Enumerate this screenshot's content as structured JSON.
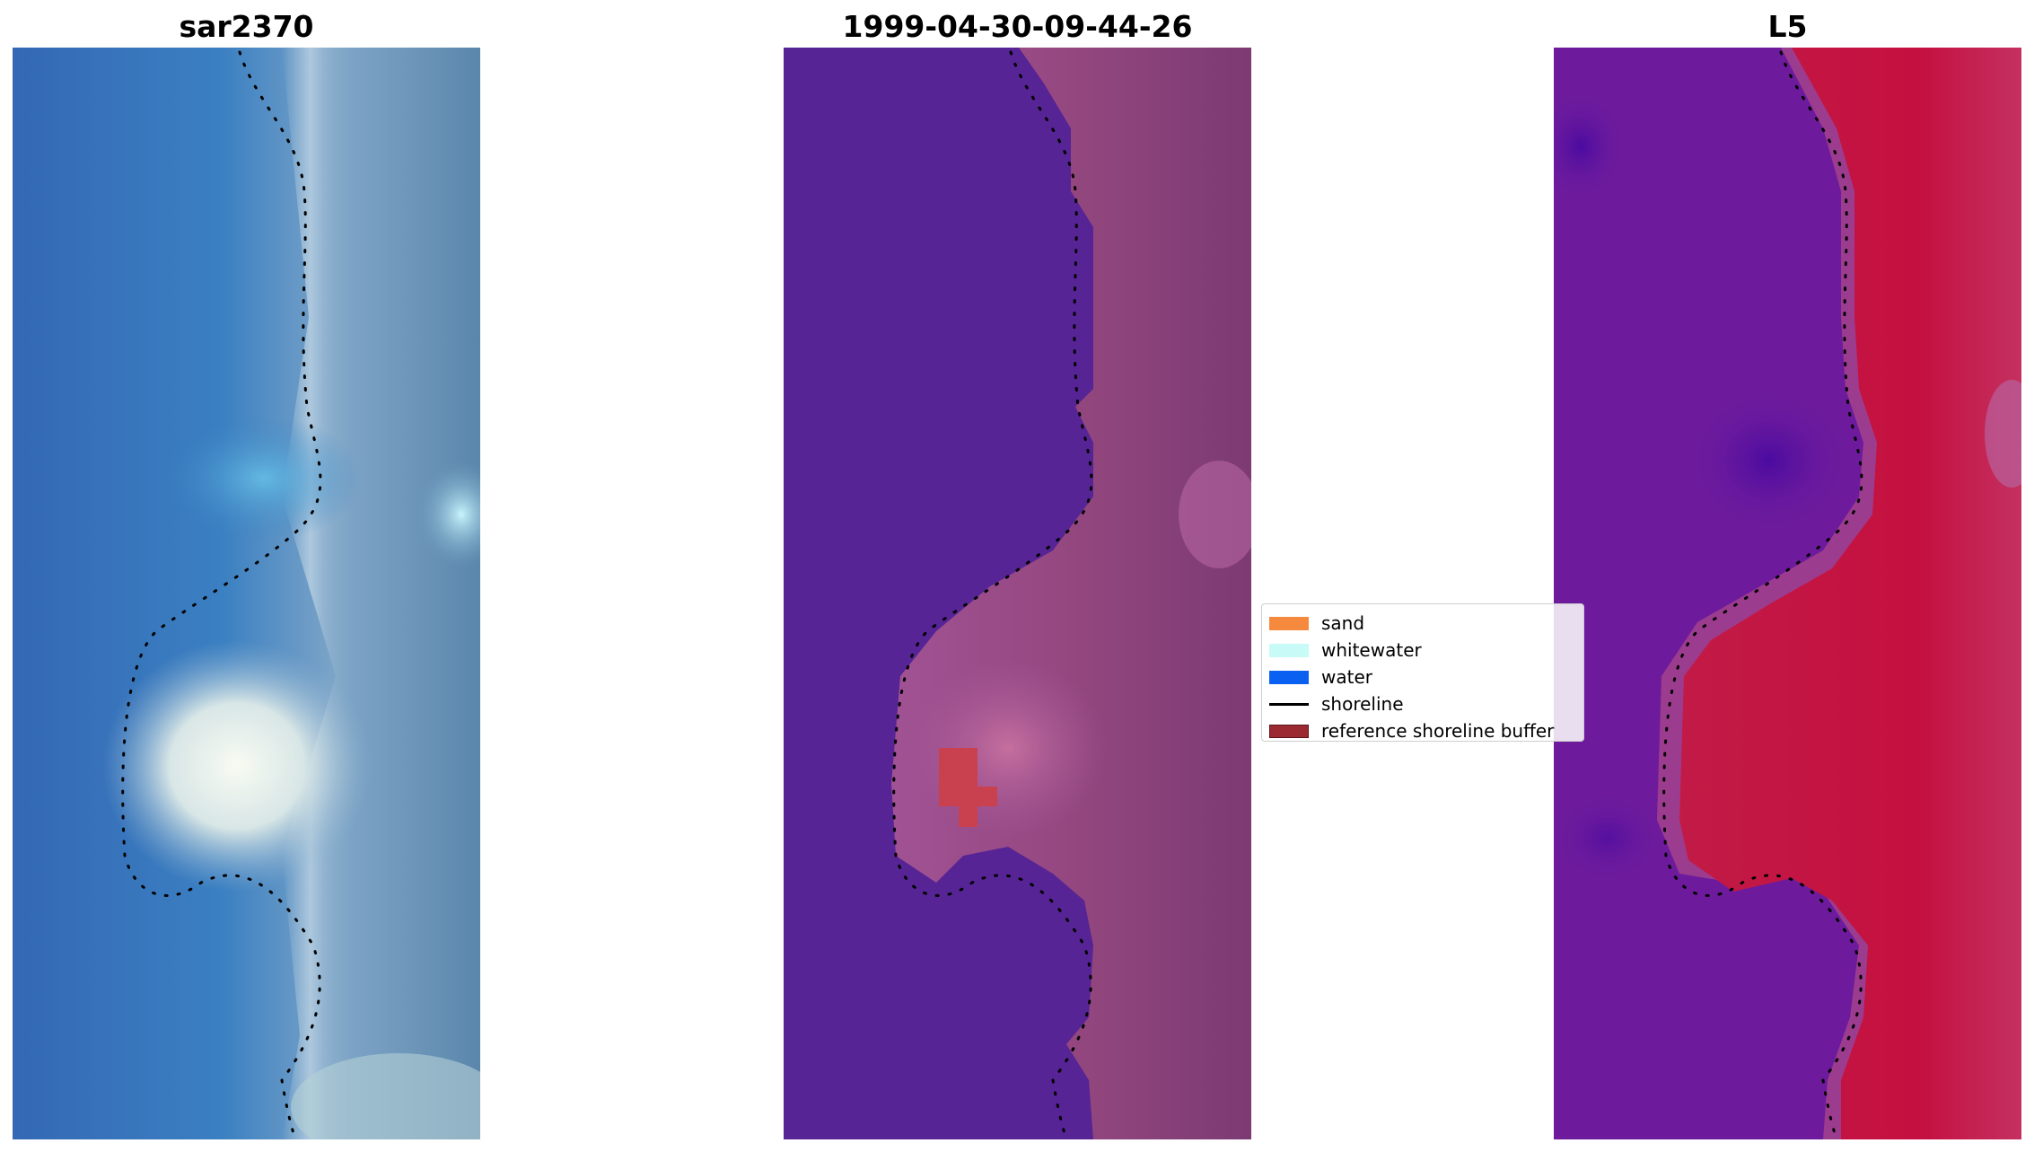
{
  "panels": [
    {
      "id": "rgb",
      "title": "sar2370"
    },
    {
      "id": "classified",
      "title": "1999-04-30-09-44-26"
    },
    {
      "id": "index",
      "title": "L5"
    }
  ],
  "legend": {
    "items": [
      {
        "label": "sand",
        "color": "#f58a3f",
        "kind": "patch"
      },
      {
        "label": "whitewater",
        "color": "#c8fbf7",
        "kind": "patch"
      },
      {
        "label": "water",
        "color": "#0a60f0",
        "kind": "patch"
      },
      {
        "label": "shoreline",
        "color": "#000000",
        "kind": "line"
      },
      {
        "label": "reference shoreline buffer",
        "color": "#9b2a33",
        "kind": "patch"
      }
    ]
  },
  "colors": {
    "water_classified": "#562495",
    "sand_tint": "#a45a9a",
    "buffer_patch": "#c9404e",
    "index_low": "#6a1aa0",
    "index_high": "#c4103a"
  }
}
